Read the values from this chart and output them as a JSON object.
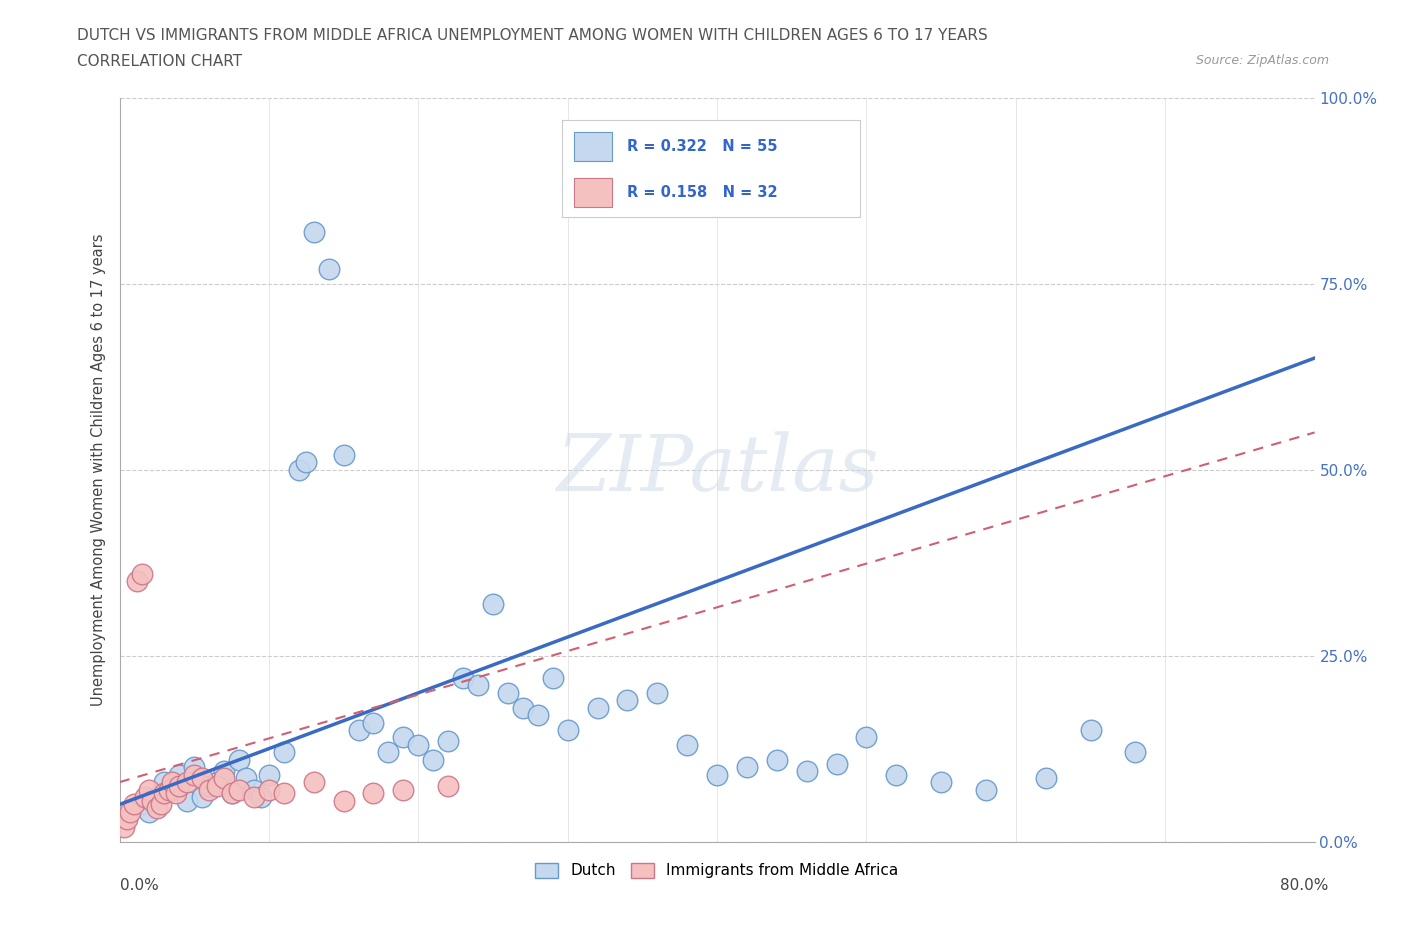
{
  "title_line1": "DUTCH VS IMMIGRANTS FROM MIDDLE AFRICA UNEMPLOYMENT AMONG WOMEN WITH CHILDREN AGES 6 TO 17 YEARS",
  "title_line2": "CORRELATION CHART",
  "source": "Source: ZipAtlas.com",
  "ylabel": "Unemployment Among Women with Children Ages 6 to 17 years",
  "xlim": [
    0.0,
    80.0
  ],
  "ylim": [
    0.0,
    100.0
  ],
  "ytick_values": [
    0.0,
    25.0,
    50.0,
    75.0,
    100.0
  ],
  "dutch_R": 0.322,
  "dutch_N": 55,
  "immigrants_R": 0.158,
  "immigrants_N": 32,
  "dutch_fill": "#c5d8ee",
  "dutch_edge": "#6699cc",
  "immigrants_fill": "#f5c0c0",
  "immigrants_edge": "#cc7788",
  "dutch_line_color": "#3a6bc4",
  "immigrants_line_color": "#d06070",
  "watermark": "ZIPatlas",
  "dutch_x": [
    1.5,
    2.0,
    2.5,
    3.0,
    3.5,
    4.0,
    4.5,
    5.0,
    5.5,
    6.0,
    6.5,
    7.0,
    7.5,
    8.0,
    8.5,
    9.0,
    9.5,
    10.0,
    11.0,
    12.0,
    12.5,
    13.0,
    14.0,
    15.0,
    16.0,
    17.0,
    18.0,
    19.0,
    20.0,
    21.0,
    22.0,
    23.0,
    24.0,
    25.0,
    26.0,
    27.0,
    28.0,
    29.0,
    30.0,
    32.0,
    34.0,
    36.0,
    38.0,
    40.0,
    42.0,
    44.0,
    46.0,
    48.0,
    50.0,
    52.0,
    55.0,
    58.0,
    62.0,
    65.0,
    68.0
  ],
  "dutch_y": [
    5.0,
    4.0,
    6.0,
    8.0,
    7.0,
    9.0,
    5.5,
    10.0,
    6.0,
    7.5,
    8.0,
    9.5,
    6.5,
    11.0,
    8.5,
    7.0,
    6.0,
    9.0,
    12.0,
    50.0,
    51.0,
    82.0,
    77.0,
    52.0,
    15.0,
    16.0,
    12.0,
    14.0,
    13.0,
    11.0,
    13.5,
    22.0,
    21.0,
    32.0,
    20.0,
    18.0,
    17.0,
    22.0,
    15.0,
    18.0,
    19.0,
    20.0,
    13.0,
    9.0,
    10.0,
    11.0,
    9.5,
    10.5,
    14.0,
    9.0,
    8.0,
    7.0,
    8.5,
    15.0,
    12.0
  ],
  "immigrants_x": [
    0.3,
    0.5,
    0.7,
    1.0,
    1.2,
    1.5,
    1.7,
    2.0,
    2.2,
    2.5,
    2.8,
    3.0,
    3.3,
    3.5,
    3.8,
    4.0,
    4.5,
    5.0,
    5.5,
    6.0,
    6.5,
    7.0,
    7.5,
    8.0,
    9.0,
    10.0,
    11.0,
    13.0,
    15.0,
    17.0,
    19.0,
    22.0
  ],
  "immigrants_y": [
    2.0,
    3.0,
    4.0,
    5.0,
    35.0,
    36.0,
    6.0,
    7.0,
    5.5,
    4.5,
    5.0,
    6.5,
    7.0,
    8.0,
    6.5,
    7.5,
    8.0,
    9.0,
    8.5,
    7.0,
    7.5,
    8.5,
    6.5,
    7.0,
    6.0,
    7.0,
    6.5,
    8.0,
    5.5,
    6.5,
    7.0,
    7.5
  ],
  "dutch_trendline_x": [
    0.0,
    80.0
  ],
  "dutch_trendline_y": [
    5.0,
    65.0
  ],
  "immigrants_trendline_x": [
    0.0,
    80.0
  ],
  "immigrants_trendline_y": [
    8.0,
    55.0
  ]
}
